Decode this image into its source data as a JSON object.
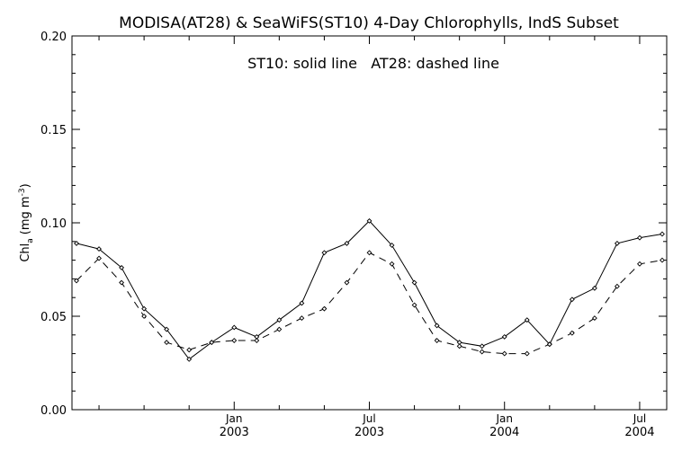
{
  "chart_data": {
    "type": "line",
    "title": "MODISA(AT28) & SeaWiFS(ST10) 4-Day Chlorophylls, IndS Subset",
    "annotation": "ST10: solid line   AT28: dashed line",
    "ylabel_main": "Chl",
    "ylabel_sub": "a",
    "ylabel_unit_open": "(mg m",
    "ylabel_unit_sup": "-3",
    "ylabel_unit_close": ")",
    "xlabel": "",
    "x_ticks": [
      {
        "label": "Jan",
        "year": "2003",
        "x": 5
      },
      {
        "label": "Jul",
        "year": "2003",
        "x": 11
      },
      {
        "label": "Jan",
        "year": "2004",
        "x": 17
      },
      {
        "label": "Jul",
        "year": "2004",
        "x": 23
      }
    ],
    "x_minor_ticks": [
      -1,
      1,
      3,
      7,
      9,
      13,
      15,
      19,
      21
    ],
    "y_ticks": [
      {
        "label": "0.00",
        "value": 0.0
      },
      {
        "label": "0.05",
        "value": 0.05
      },
      {
        "label": "0.10",
        "value": 0.1
      },
      {
        "label": "0.15",
        "value": 0.15
      },
      {
        "label": "0.20",
        "value": 0.2
      }
    ],
    "xlim": [
      -2.2,
      24.2
    ],
    "ylim": [
      0.0,
      0.2
    ],
    "grid": false,
    "series": [
      {
        "name": "ST10",
        "style": "solid",
        "color": "#000000",
        "x": [
          -2,
          -1,
          0,
          1,
          2,
          3,
          4,
          5,
          6,
          7,
          8,
          9,
          10,
          11,
          12,
          13,
          14,
          15,
          16,
          17,
          18,
          19,
          20,
          21,
          22,
          23,
          24
        ],
        "y": [
          0.089,
          0.086,
          0.076,
          0.054,
          0.043,
          0.027,
          0.036,
          0.044,
          0.039,
          0.048,
          0.057,
          0.084,
          0.089,
          0.101,
          0.088,
          0.068,
          0.045,
          0.036,
          0.034,
          0.039,
          0.048,
          0.035,
          0.059,
          0.065,
          0.089,
          0.092,
          0.094
        ]
      },
      {
        "name": "AT28",
        "style": "dashed",
        "color": "#000000",
        "x": [
          -2,
          -1,
          0,
          1,
          2,
          3,
          4,
          5,
          6,
          7,
          8,
          9,
          10,
          11,
          12,
          13,
          14,
          15,
          16,
          17,
          18,
          19,
          20,
          21,
          22,
          23,
          24
        ],
        "y": [
          0.069,
          0.081,
          0.068,
          0.05,
          0.036,
          0.032,
          0.036,
          0.037,
          0.037,
          0.043,
          0.049,
          0.054,
          0.068,
          0.084,
          0.078,
          0.056,
          0.037,
          0.034,
          0.031,
          0.03,
          0.03,
          0.035,
          0.041,
          0.049,
          0.066,
          0.078,
          0.08
        ]
      }
    ]
  }
}
